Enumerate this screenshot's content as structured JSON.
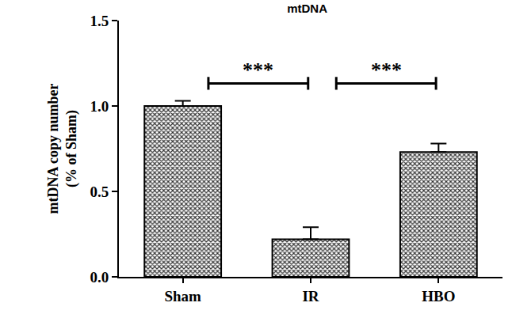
{
  "chart_data": {
    "type": "bar",
    "title": "mtDNA",
    "y_label": "mtDNA copy number\n(% of Sham)",
    "categories": [
      "Sham",
      "IR",
      "HBO"
    ],
    "values": [
      1.0,
      0.22,
      0.73
    ],
    "errors": [
      0.03,
      0.07,
      0.05
    ],
    "color": "#333333",
    "ylim": [
      0,
      1.5
    ],
    "yticks": [
      {
        "value": 0,
        "label": "0.0"
      },
      {
        "value": 0.5,
        "label": "0.5"
      },
      {
        "value": 1,
        "label": "1.0"
      },
      {
        "value": 1.5,
        "label": "1.5"
      }
    ],
    "grid": false,
    "annotations": [
      {
        "text": "***",
        "between": [
          "Sham",
          "IR"
        ]
      },
      {
        "text": "***",
        "between": [
          "IR",
          "HBO"
        ]
      }
    ]
  }
}
